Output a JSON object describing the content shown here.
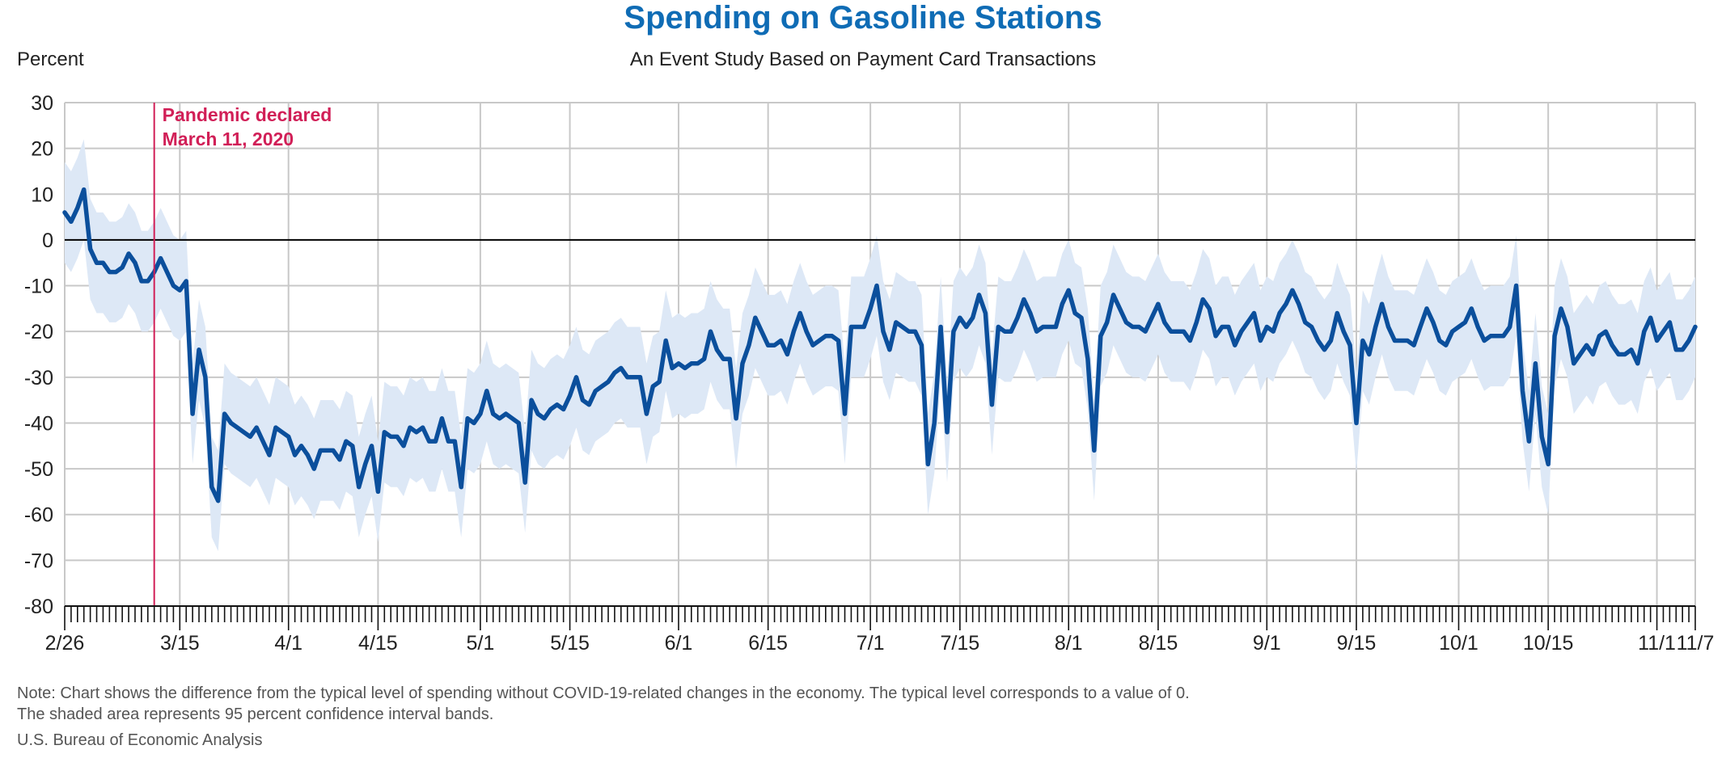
{
  "chart_data": {
    "type": "line",
    "title": "Spending on Gasoline Stations",
    "subtitle": "An Event Study Based on Payment Card Transactions",
    "ylabel": "Percent",
    "xlabel": "",
    "ylim": [
      -80,
      30
    ],
    "y_ticks": [
      "30",
      "20",
      "10",
      "0",
      "-10",
      "-20",
      "-30",
      "-40",
      "-50",
      "-60",
      "-70",
      "-80"
    ],
    "x_range": [
      "2020-02-26",
      "2020-11-07"
    ],
    "x_ticks": [
      {
        "date": "2020-02-26",
        "label": "2/26"
      },
      {
        "date": "2020-03-15",
        "label": "3/15"
      },
      {
        "date": "2020-04-01",
        "label": "4/1"
      },
      {
        "date": "2020-04-15",
        "label": "4/15"
      },
      {
        "date": "2020-05-01",
        "label": "5/1"
      },
      {
        "date": "2020-05-15",
        "label": "5/15"
      },
      {
        "date": "2020-06-01",
        "label": "6/1"
      },
      {
        "date": "2020-06-15",
        "label": "6/15"
      },
      {
        "date": "2020-07-01",
        "label": "7/1"
      },
      {
        "date": "2020-07-15",
        "label": "7/15"
      },
      {
        "date": "2020-08-01",
        "label": "8/1"
      },
      {
        "date": "2020-08-15",
        "label": "8/15"
      },
      {
        "date": "2020-09-01",
        "label": "9/1"
      },
      {
        "date": "2020-09-15",
        "label": "9/15"
      },
      {
        "date": "2020-10-01",
        "label": "10/1"
      },
      {
        "date": "2020-10-15",
        "label": "10/15"
      },
      {
        "date": "2020-11-01",
        "label": "11/1"
      },
      {
        "date": "2020-11-07",
        "label": "11/7"
      }
    ],
    "grid": true,
    "zero_line": true,
    "event": {
      "date": "2020-03-11",
      "label_line1": "Pandemic declared",
      "label_line2": "March 11, 2020"
    },
    "band_width": 11,
    "colors": {
      "line": "#0b4f9c",
      "band": "#dde8f6",
      "event": "#d11f57",
      "grid": "#c8c8c8",
      "zero": "#000000",
      "title": "#0f6cb5"
    },
    "series": [
      {
        "start_date": "2020-02-26",
        "values": [
          6,
          4,
          7,
          11,
          -2,
          -5,
          -5,
          -7,
          -7,
          -6,
          -3,
          -5,
          -9,
          -9,
          -7,
          -4,
          -7,
          -10,
          -11,
          -9,
          -38,
          -24,
          -30,
          -54,
          -57,
          -38,
          -40,
          -41,
          -42,
          -43,
          -41,
          -44,
          -47,
          -41,
          -42,
          -43,
          -47,
          -45,
          -47,
          -50,
          -46,
          -46,
          -46,
          -48,
          -44,
          -45,
          -54,
          -49,
          -45,
          -55,
          -42,
          -43,
          -43,
          -45,
          -41,
          -42,
          -41,
          -44,
          -44,
          -39,
          -44,
          -44,
          -54,
          -39,
          -40,
          -38,
          -33,
          -38,
          -39,
          -38,
          -39,
          -40,
          -53,
          -35,
          -38,
          -39,
          -37,
          -36,
          -37,
          -34,
          -30,
          -35,
          -36,
          -33,
          -32,
          -31,
          -29,
          -28,
          -30,
          -30,
          -30,
          -38,
          -32,
          -31,
          -22,
          -28,
          -27,
          -28,
          -27,
          -27,
          -26,
          -20,
          -24,
          -26,
          -26,
          -39,
          -27,
          -23,
          -17,
          -20,
          -23,
          -23,
          -22,
          -25,
          -20,
          -16,
          -20,
          -23,
          -22,
          -21,
          -21,
          -22,
          -38,
          -19,
          -19,
          -19,
          -15,
          -10,
          -20,
          -24,
          -18,
          -19,
          -20,
          -20,
          -23,
          -49,
          -40,
          -19,
          -42,
          -20,
          -17,
          -19,
          -17,
          -12,
          -16,
          -36,
          -19,
          -20,
          -20,
          -17,
          -13,
          -16,
          -20,
          -19,
          -19,
          -19,
          -14,
          -11,
          -16,
          -17,
          -26,
          -46,
          -21,
          -18,
          -12,
          -15,
          -18,
          -19,
          -19,
          -20,
          -17,
          -14,
          -18,
          -20,
          -20,
          -20,
          -22,
          -18,
          -13,
          -15,
          -21,
          -19,
          -19,
          -23,
          -20,
          -18,
          -16,
          -22,
          -19,
          -20,
          -16,
          -14,
          -11,
          -14,
          -18,
          -19,
          -22,
          -24,
          -22,
          -16,
          -20,
          -23,
          -40,
          -22,
          -25,
          -19,
          -14,
          -19,
          -22,
          -22,
          -22,
          -23,
          -19,
          -15,
          -18,
          -22,
          -23,
          -20,
          -19,
          -18,
          -15,
          -19,
          -22,
          -21,
          -21,
          -21,
          -19,
          -10,
          -33,
          -44,
          -27,
          -43,
          -49,
          -21,
          -15,
          -19,
          -27,
          -25,
          -23,
          -25,
          -21,
          -20,
          -23,
          -25,
          -25,
          -24,
          -27,
          -20,
          -17,
          -22,
          -20,
          -18,
          -24,
          -24,
          -22,
          -19
        ]
      }
    ]
  },
  "note_line1": "Note: Chart shows the difference from the typical level of spending without COVID-19-related changes in the economy. The typical level corresponds to a value of 0.",
  "note_line2": "The shaded area represents 95 percent confidence interval bands.",
  "source": "U.S. Bureau of Economic Analysis"
}
